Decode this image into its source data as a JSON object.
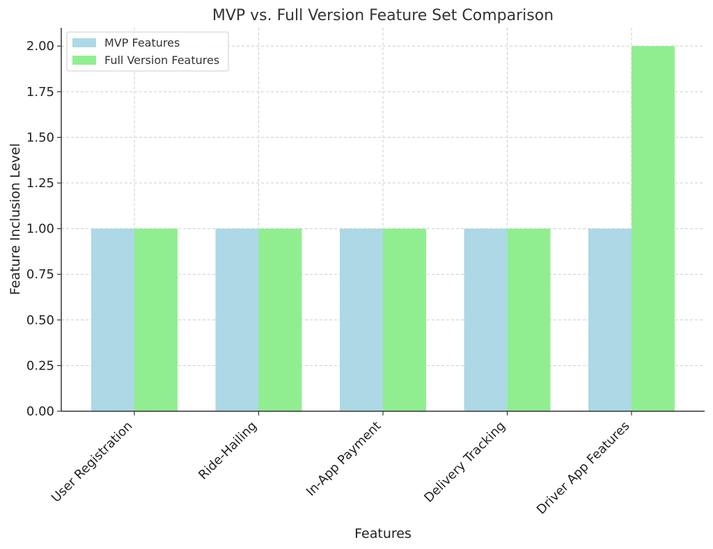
{
  "chart_data": {
    "type": "bar",
    "title": "MVP vs. Full Version Feature Set Comparison",
    "xlabel": "Features",
    "ylabel": "Feature Inclusion Level",
    "categories": [
      "User Registration",
      "Ride-Hailing",
      "In-App Payment",
      "Delivery Tracking",
      "Driver App Features"
    ],
    "series": [
      {
        "name": "MVP Features",
        "values": [
          1,
          1,
          1,
          1,
          1
        ],
        "color": "#add8e6"
      },
      {
        "name": "Full Version Features",
        "values": [
          1,
          1,
          1,
          1,
          2
        ],
        "color": "#90ee90"
      }
    ],
    "ylim": [
      0,
      2.1
    ],
    "yticks": [
      "0.00",
      "0.25",
      "0.50",
      "0.75",
      "1.00",
      "1.25",
      "1.50",
      "1.75",
      "2.00"
    ],
    "grid": true,
    "legend_position": "top-left"
  }
}
